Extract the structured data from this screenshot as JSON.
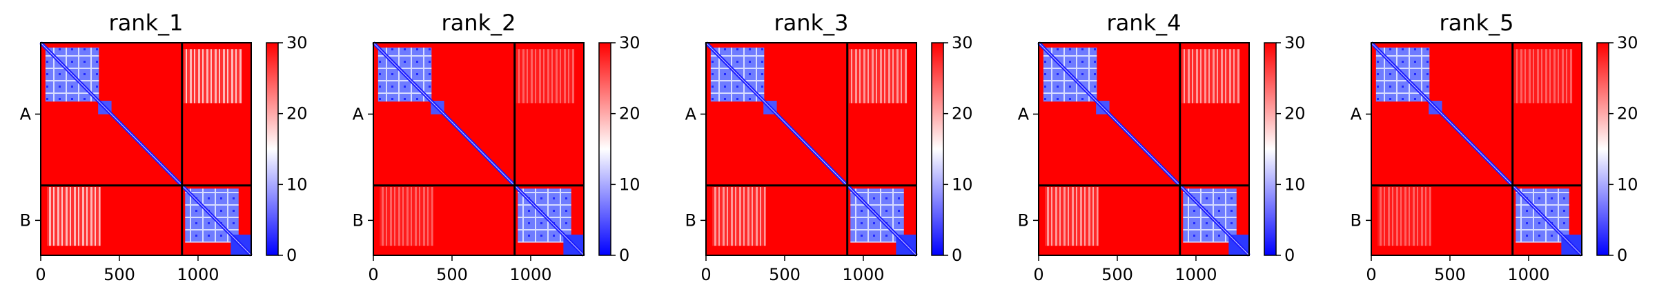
{
  "chart_data": {
    "type": "heatmap",
    "colormap": "bwr",
    "colors": {
      "low": "#0000ff",
      "mid": "#ffffff",
      "high": "#ff0000",
      "divider": "#000000"
    },
    "x_range": [
      0,
      1338
    ],
    "x_ticks": [
      0,
      500,
      1000
    ],
    "x_tick_labels": [
      "0",
      "500",
      "1000"
    ],
    "chain_labels": [
      "A",
      "B"
    ],
    "chain_boundary": 898,
    "colorbar": {
      "min": 0,
      "max": 30,
      "ticks": [
        0,
        10,
        20,
        30
      ],
      "tick_labels": [
        "0",
        "10",
        "20",
        "30"
      ]
    },
    "panels": [
      {
        "title": "rank_1",
        "interchain_contact": "low"
      },
      {
        "title": "rank_2",
        "interchain_contact": "lowest"
      },
      {
        "title": "rank_3",
        "interchain_contact": "moderate"
      },
      {
        "title": "rank_4",
        "interchain_contact": "moderate"
      },
      {
        "title": "rank_5",
        "interchain_contact": "lowest"
      }
    ]
  }
}
